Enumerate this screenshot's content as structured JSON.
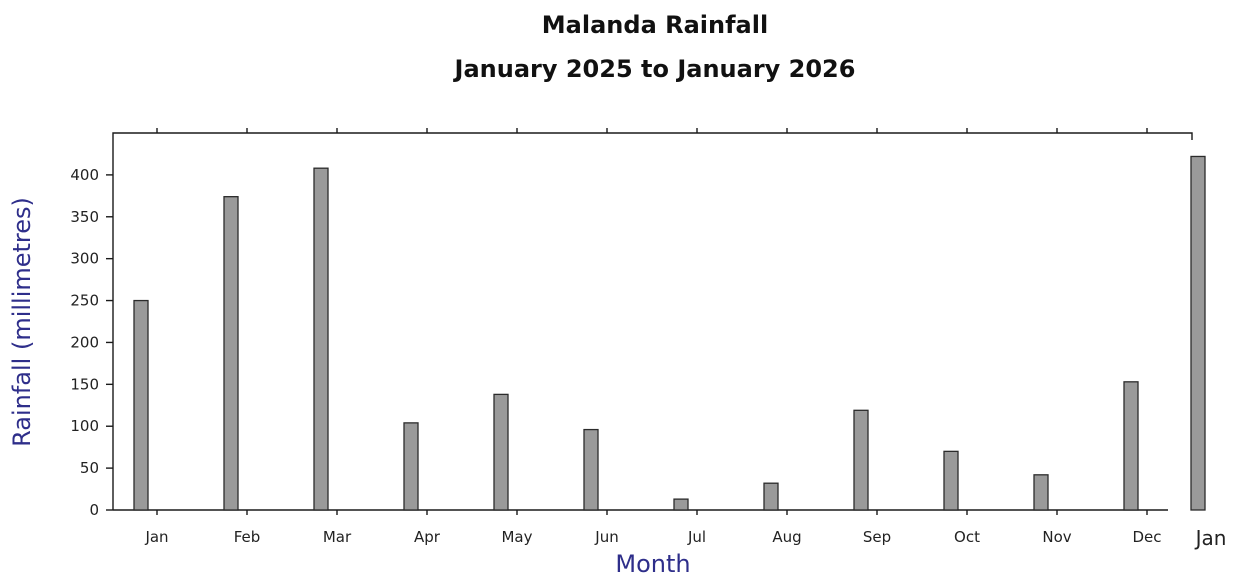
{
  "chart_data": {
    "type": "bar",
    "title": "Malanda Rainfall",
    "subtitle": "January 2025 to January 2026",
    "xlabel": "Month",
    "ylabel": "Rainfall (millimetres)",
    "categories": [
      "Jan",
      "Feb",
      "Mar",
      "Apr",
      "May",
      "Jun",
      "Jul",
      "Aug",
      "Sep",
      "Oct",
      "Nov",
      "Dec",
      "Jan"
    ],
    "values": [
      250,
      374,
      408,
      104,
      138,
      96,
      13,
      32,
      119,
      70,
      42,
      153,
      422
    ],
    "yticks": [
      "0",
      "50",
      "100",
      "150",
      "200",
      "250",
      "300",
      "350",
      "400"
    ],
    "ylim": [
      0,
      450
    ],
    "grid": false,
    "legend": "none",
    "bar_color": "#9a9a9a",
    "axis_label_color": "#2e2e8a"
  }
}
